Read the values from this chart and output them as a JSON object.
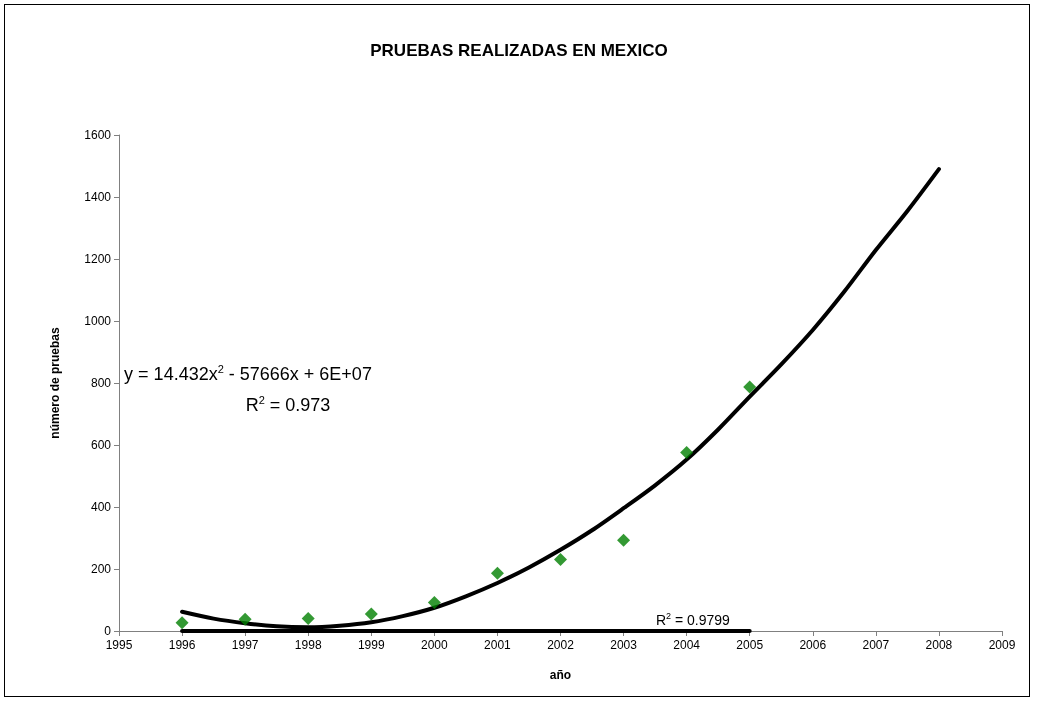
{
  "chart_data": {
    "type": "scatter",
    "title": "PRUEBAS REALIZADAS EN MEXICO",
    "xlabel": "año",
    "ylabel": "número de pruebas",
    "series": [
      {
        "color": "#008000",
        "marker": "diamond",
        "x": [
          1996,
          1997,
          1998,
          1999,
          2000,
          2001,
          2002,
          2003,
          2004,
          2005
        ],
        "values": [
          27,
          38,
          40,
          55,
          92,
          186,
          231,
          293,
          576,
          787
        ]
      },
      {
        "type": "line",
        "color": "#000000",
        "marker": "none",
        "x": [
          1996,
          1996.5,
          1997,
          1997.5,
          1998,
          1998.5,
          1999,
          1999.5,
          2000,
          2000.5,
          2001,
          2001.5,
          2002,
          2002.5,
          2003,
          2003.5,
          2004,
          2004.5,
          2005,
          2005.5,
          2006,
          2006.5,
          2007,
          2007.5,
          2008
        ],
        "values": [
          62,
          40,
          25,
          15,
          12,
          17,
          28,
          48,
          75,
          112,
          155,
          205,
          262,
          325,
          396,
          470,
          553,
          650,
          756,
          860,
          971,
          1095,
          1229,
          1355,
          1490
        ]
      },
      {
        "type": "line",
        "color": "#000000",
        "marker": "none",
        "x": [
          1996,
          2005
        ],
        "values": [
          0,
          0
        ]
      }
    ],
    "annotations": [
      "y = 14.432x$^{2}$ - 57666x + 6E+07",
      "R$^{2}$ = 0.973",
      {
        "text": "R$^{2}$ = 0.9799",
        "x": 2004.1,
        "y": 0
      }
    ],
    "xlim": [
      1995,
      2009
    ],
    "xticks": [
      1995,
      1996,
      1997,
      1998,
      1999,
      2000,
      2001,
      2002,
      2003,
      2004,
      2005,
      2006,
      2007,
      2008,
      2009
    ],
    "ylim": [
      0,
      1600
    ],
    "yticks": [
      0,
      200,
      400,
      600,
      800,
      1000,
      1200,
      1400,
      1600
    ],
    "grid": false
  }
}
